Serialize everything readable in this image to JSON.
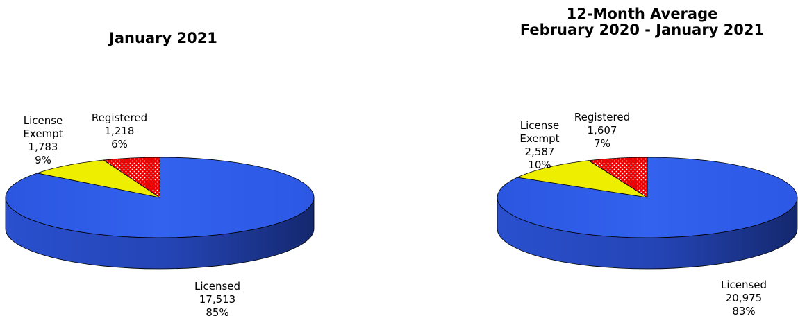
{
  "chart_data": [
    {
      "type": "pie",
      "title": "January 2021",
      "slices": [
        {
          "name": "Licensed",
          "label_lines": [
            "Licensed"
          ],
          "value": 17513,
          "value_text": "17,513",
          "percent": 85,
          "percent_text": "85%",
          "color": "#2e5be8",
          "side_color": "#203f9e"
        },
        {
          "name": "License Exempt",
          "label_lines": [
            "License",
            "Exempt"
          ],
          "value": 1783,
          "value_text": "1,783",
          "percent": 9,
          "percent_text": "9%",
          "color": "#eeee00",
          "side_color": "#a5a500"
        },
        {
          "name": "Registered",
          "label_lines": [
            "Registered"
          ],
          "value": 1218,
          "value_text": "1,218",
          "percent": 6,
          "percent_text": "6%",
          "color": "#ee0000",
          "side_color": "#a00000",
          "pattern": "dots"
        }
      ]
    },
    {
      "type": "pie",
      "title_lines": [
        "12-Month Average",
        "February 2020 - January 2021"
      ],
      "slices": [
        {
          "name": "Licensed",
          "label_lines": [
            "Licensed"
          ],
          "value": 20975,
          "value_text": "20,975",
          "percent": 83,
          "percent_text": "83%",
          "color": "#2e5be8",
          "side_color": "#203f9e"
        },
        {
          "name": "License Exempt",
          "label_lines": [
            "License",
            "Exempt"
          ],
          "value": 2587,
          "value_text": "2,587",
          "percent": 10,
          "percent_text": "10%",
          "color": "#eeee00",
          "side_color": "#a5a500"
        },
        {
          "name": "Registered",
          "label_lines": [
            "Registered"
          ],
          "value": 1607,
          "value_text": "1,607",
          "percent": 7,
          "percent_text": "7%",
          "color": "#ee0000",
          "side_color": "#a00000",
          "pattern": "dots"
        }
      ]
    }
  ]
}
